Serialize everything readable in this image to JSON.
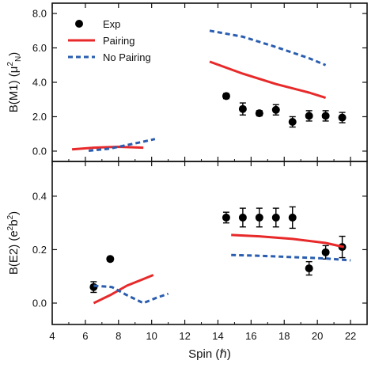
{
  "chart_data": [
    {
      "type": "scatter",
      "panel": "top",
      "ylabel": "B(M1) (μ²N)",
      "ylabel_parts": {
        "main": "B(M1) (μ",
        "sup": "2",
        "sub": "N",
        "close": ")"
      },
      "xlim": [
        4,
        23
      ],
      "ylim": [
        -0.6,
        8.6
      ],
      "yticks": [
        0.0,
        2.0,
        4.0,
        6.0,
        8.0
      ],
      "ytick_labels": [
        "0.0",
        "2.0",
        "4.0",
        "6.0",
        "8.0"
      ],
      "legend": {
        "placement": "top-left",
        "entries": [
          {
            "label": "Exp",
            "style": "marker",
            "color": "#000000"
          },
          {
            "label": "Pairing",
            "style": "solid",
            "color": "#e8292a"
          },
          {
            "label": "No Pairing",
            "style": "dashed",
            "color": "#2a5db0"
          }
        ]
      },
      "series": [
        {
          "name": "Exp",
          "style": "marker",
          "color": "#000000",
          "points": [
            {
              "x": 14.5,
              "y": 3.2,
              "err": 0.15
            },
            {
              "x": 15.5,
              "y": 2.45,
              "err": 0.35
            },
            {
              "x": 16.5,
              "y": 2.2,
              "err": 0.15
            },
            {
              "x": 17.5,
              "y": 2.4,
              "err": 0.3
            },
            {
              "x": 18.5,
              "y": 1.7,
              "err": 0.3
            },
            {
              "x": 19.5,
              "y": 2.05,
              "err": 0.3
            },
            {
              "x": 20.5,
              "y": 2.05,
              "err": 0.3
            },
            {
              "x": 21.5,
              "y": 1.95,
              "err": 0.3
            }
          ]
        },
        {
          "name": "Pairing",
          "style": "solid",
          "color": "#e8292a",
          "segments": [
            [
              [
                5.2,
                0.1
              ],
              [
                6.5,
                0.2
              ],
              [
                8.0,
                0.25
              ],
              [
                9.5,
                0.2
              ]
            ],
            [
              [
                13.5,
                5.2
              ],
              [
                15.5,
                4.5
              ],
              [
                17.5,
                3.9
              ],
              [
                19.5,
                3.4
              ],
              [
                20.5,
                3.1
              ]
            ]
          ]
        },
        {
          "name": "No Pairing",
          "style": "dashed",
          "color": "#2a5db0",
          "segments": [
            [
              [
                6.2,
                0.02
              ],
              [
                7.5,
                0.15
              ],
              [
                8.5,
                0.35
              ],
              [
                9.5,
                0.55
              ],
              [
                10.2,
                0.7
              ]
            ],
            [
              [
                13.5,
                7.0
              ],
              [
                15.5,
                6.65
              ],
              [
                17.5,
                6.05
              ],
              [
                19.5,
                5.4
              ],
              [
                20.5,
                5.0
              ]
            ]
          ]
        }
      ]
    },
    {
      "type": "scatter",
      "panel": "bottom",
      "xlabel": "Spin (ℏ)",
      "ylabel": "B(E2) (e²b²)",
      "ylabel_parts": {
        "main": "B(E2) (e",
        "sup1": "2",
        "mid": "b",
        "sup2": "2",
        "close": ")"
      },
      "xlim": [
        4,
        23
      ],
      "ylim": [
        -0.08,
        0.53
      ],
      "xticks": [
        4,
        6,
        8,
        10,
        12,
        14,
        16,
        18,
        20,
        22
      ],
      "xtick_labels": [
        "4",
        "6",
        "8",
        "10",
        "12",
        "14",
        "16",
        "18",
        "20",
        "22"
      ],
      "yticks": [
        0.0,
        0.2,
        0.4
      ],
      "ytick_labels": [
        "0.0",
        "0.2",
        "0.4"
      ],
      "series": [
        {
          "name": "Exp",
          "style": "marker",
          "color": "#000000",
          "points": [
            {
              "x": 6.5,
              "y": 0.06,
              "err": 0.02
            },
            {
              "x": 7.5,
              "y": 0.165,
              "err": 0.008
            },
            {
              "x": 14.5,
              "y": 0.32,
              "err": 0.02
            },
            {
              "x": 15.5,
              "y": 0.32,
              "err": 0.035
            },
            {
              "x": 16.5,
              "y": 0.32,
              "err": 0.035
            },
            {
              "x": 17.5,
              "y": 0.32,
              "err": 0.035
            },
            {
              "x": 18.5,
              "y": 0.32,
              "err": 0.04
            },
            {
              "x": 19.5,
              "y": 0.13,
              "err": 0.025
            },
            {
              "x": 20.5,
              "y": 0.19,
              "err": 0.025
            },
            {
              "x": 21.5,
              "y": 0.21,
              "err": 0.04
            }
          ]
        },
        {
          "name": "Pairing",
          "style": "solid",
          "color": "#e8292a",
          "segments": [
            [
              [
                6.5,
                0.0
              ],
              [
                7.5,
                0.03
              ],
              [
                8.5,
                0.065
              ],
              [
                9.5,
                0.09
              ],
              [
                10.1,
                0.105
              ]
            ],
            [
              [
                14.8,
                0.255
              ],
              [
                16.5,
                0.25
              ],
              [
                18.5,
                0.24
              ],
              [
                20.5,
                0.225
              ],
              [
                21.6,
                0.21
              ]
            ]
          ]
        },
        {
          "name": "No Pairing",
          "style": "dashed",
          "color": "#2a5db0",
          "segments": [
            [
              [
                6.5,
                0.065
              ],
              [
                7.6,
                0.06
              ],
              [
                8.5,
                0.03
              ],
              [
                9.5,
                0.0
              ],
              [
                10.3,
                0.02
              ],
              [
                11.0,
                0.035
              ]
            ],
            [
              [
                14.8,
                0.18
              ],
              [
                16.5,
                0.177
              ],
              [
                18.5,
                0.172
              ],
              [
                20.5,
                0.167
              ],
              [
                22.0,
                0.16
              ]
            ]
          ]
        }
      ]
    }
  ]
}
